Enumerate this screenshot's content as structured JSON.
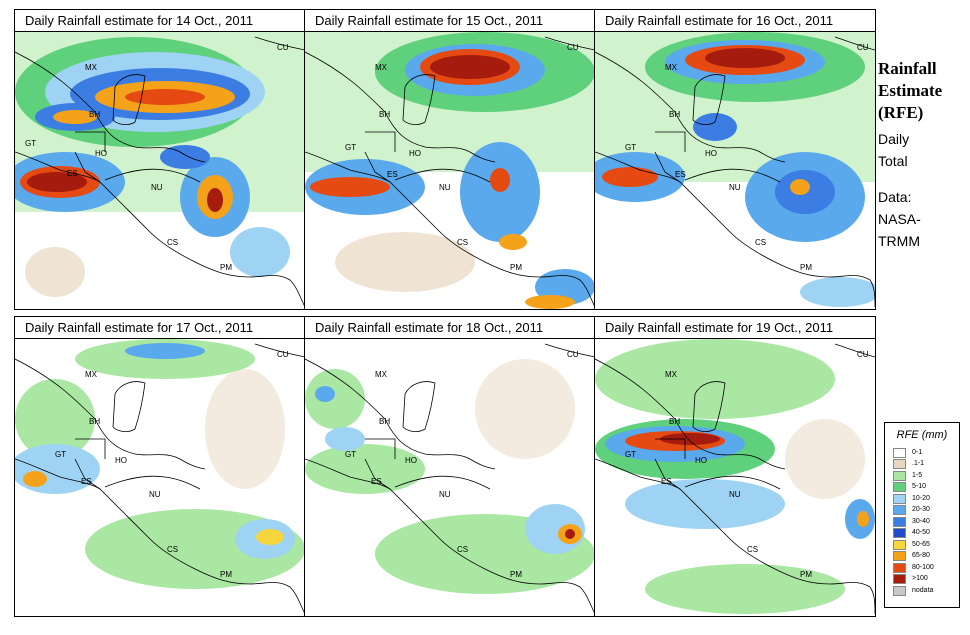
{
  "panels": [
    {
      "title": "Daily Rainfall estimate for  14 Oct., 2011",
      "date": "14 Oct., 2011"
    },
    {
      "title": "Daily Rainfall estimate for  15 Oct., 2011",
      "date": "15 Oct., 2011"
    },
    {
      "title": "Daily Rainfall estimate for  16 Oct., 2011",
      "date": "16 Oct., 2011"
    },
    {
      "title": "Daily Rainfall estimate for  17 Oct., 2011",
      "date": "17 Oct., 2011"
    },
    {
      "title": "Daily Rainfall estimate for  18 Oct., 2011",
      "date": "18 Oct., 2011"
    },
    {
      "title": "Daily Rainfall estimate for  19 Oct., 2011",
      "date": "19 Oct., 2011"
    }
  ],
  "map_labels": {
    "mx": "MX",
    "cu": "CU",
    "bh": "BH",
    "gt": "GT",
    "ho": "HO",
    "es": "ES",
    "nu": "NU",
    "cs": "CS",
    "pm": "PM"
  },
  "side": {
    "title_line1": "Rainfall",
    "title_line2": "Estimate",
    "title_line3": "(RFE)",
    "daily_line1": "Daily",
    "daily_line2": "Total",
    "data_line1": "Data:",
    "data_line2": "NASA-",
    "data_line3": "TRMM"
  },
  "legend": {
    "title": "RFE (mm)",
    "items": [
      {
        "label": "0-1",
        "color": "#ffffff"
      },
      {
        "label": ".1-1",
        "color": "#e8d7c0"
      },
      {
        "label": "1-5",
        "color": "#a9e7a3"
      },
      {
        "label": "5-10",
        "color": "#5fd07c"
      },
      {
        "label": "10-20",
        "color": "#9fd3f4"
      },
      {
        "label": "20-30",
        "color": "#5aa9ec"
      },
      {
        "label": "30-40",
        "color": "#3c7de3"
      },
      {
        "label": "40-50",
        "color": "#2149c9"
      },
      {
        "label": "50-65",
        "color": "#f7d53c"
      },
      {
        "label": "65-80",
        "color": "#f5a21b"
      },
      {
        "label": "80-100",
        "color": "#e44a11"
      },
      {
        "label": ">100",
        "color": "#a51b0e"
      },
      {
        "label": "nodata",
        "color": "#c8c8c8"
      }
    ]
  }
}
